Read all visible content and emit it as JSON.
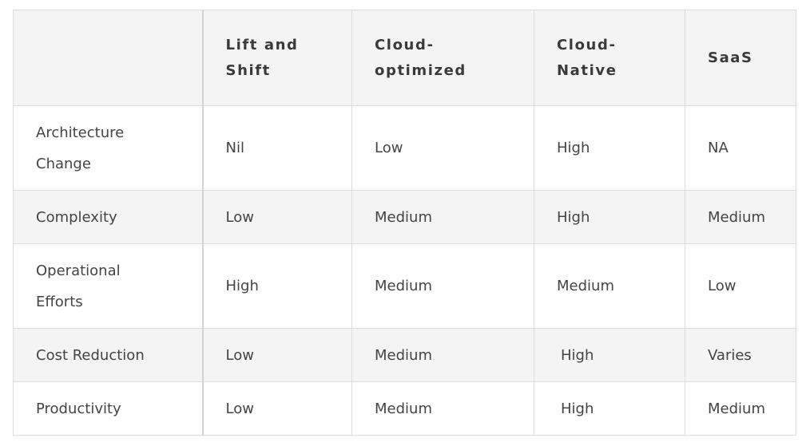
{
  "table": {
    "headers": [
      "",
      "Lift and\nShift",
      "Cloud-\noptimized",
      "Cloud-\nNative",
      "SaaS"
    ],
    "header_lines": [
      [],
      [
        "Lift and",
        "Shift"
      ],
      [
        "Cloud-",
        "optimized"
      ],
      [
        "Cloud-",
        "Native"
      ],
      [
        "SaaS"
      ]
    ],
    "rows": [
      {
        "label_lines": [
          "Architecture",
          "Change"
        ],
        "cells": [
          "Nil",
          "Low",
          "High",
          "NA"
        ]
      },
      {
        "label_lines": [
          "Complexity"
        ],
        "cells": [
          "Low",
          "Medium",
          "High",
          "Medium"
        ]
      },
      {
        "label_lines": [
          "Operational",
          "Efforts"
        ],
        "cells": [
          "High",
          "Medium",
          "Medium",
          "Low"
        ]
      },
      {
        "label_lines": [
          "Cost Reduction"
        ],
        "cells": [
          "Low",
          "Medium",
          "High",
          "Varies"
        ]
      },
      {
        "label_lines": [
          "Productivity"
        ],
        "cells": [
          "Low",
          "Medium",
          "High",
          "Medium"
        ]
      }
    ]
  },
  "colors": {
    "header_bg": "#f4f4f4",
    "alt_row_bg": "#f4f4f4",
    "border": "#dcdcdc",
    "text": "#444444"
  }
}
